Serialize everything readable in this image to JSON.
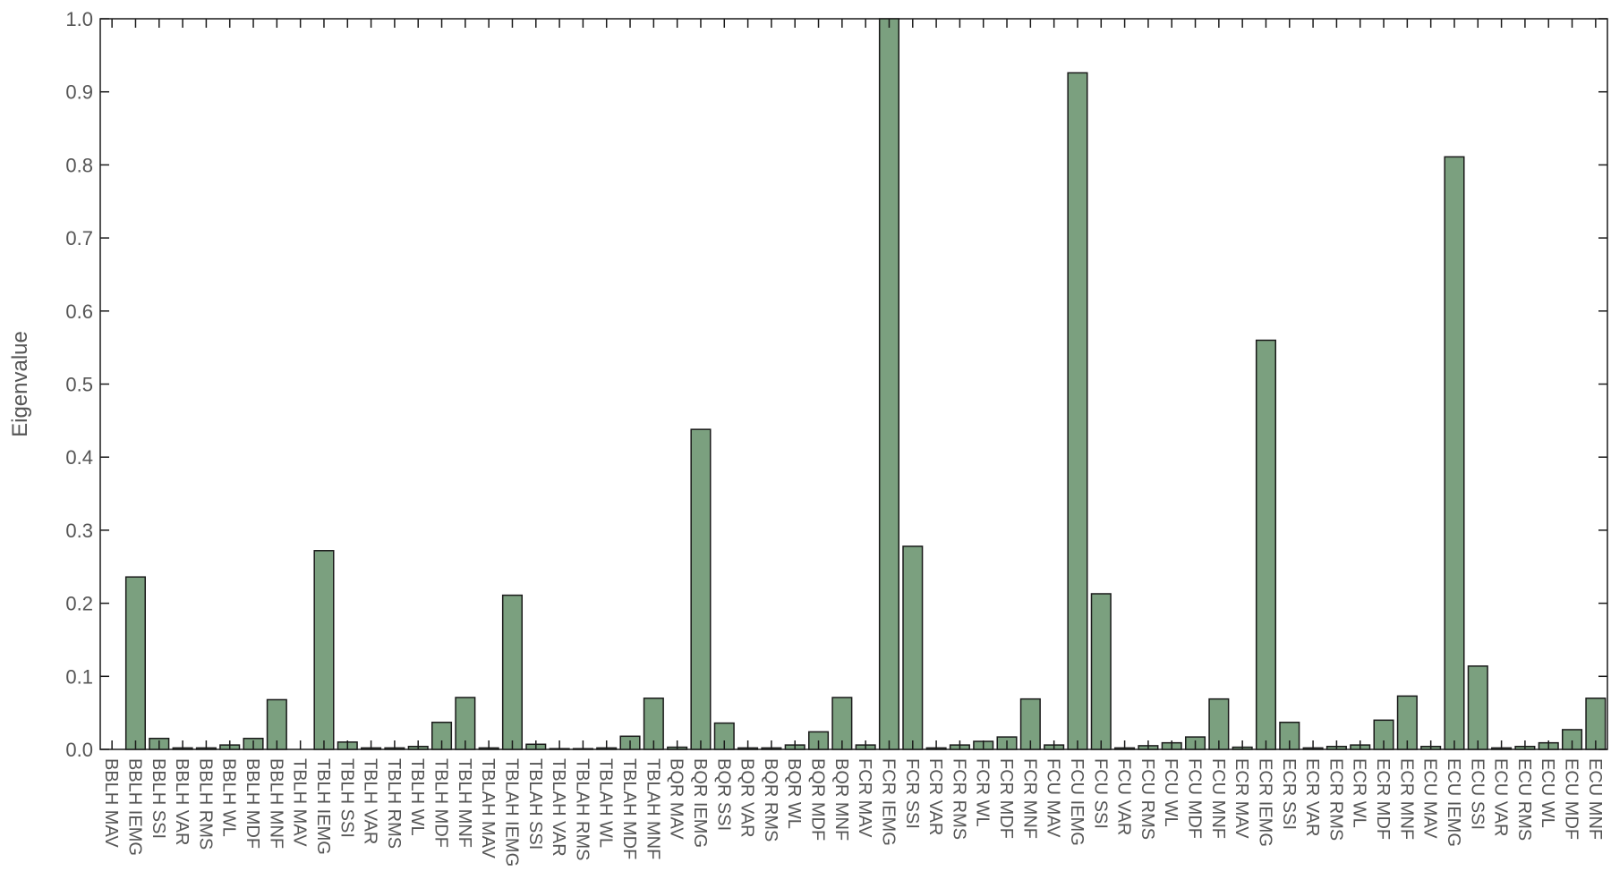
{
  "chart_data": {
    "type": "bar",
    "title": "",
    "xlabel": "",
    "ylabel": "Eigenvalue",
    "ylim": [
      0,
      1.0
    ],
    "yticks": [
      "0.0",
      "0.1",
      "0.2",
      "0.3",
      "0.4",
      "0.5",
      "0.6",
      "0.7",
      "0.8",
      "0.9",
      "1.0"
    ],
    "grid": false,
    "bar_color": "#7ba07f",
    "bar_edge_color": "#1a1a1a",
    "categories": [
      "BBLH MAV",
      "BBLH IEMG",
      "BBLH SSI",
      "BBLH VAR",
      "BBLH RMS",
      "BBLH WL",
      "BBLH MDF",
      "BBLH MNF",
      "TBLH MAV",
      "TBLH IEMG",
      "TBLH SSI",
      "TBLH VAR",
      "TBLH RMS",
      "TBLH WL",
      "TBLH MDF",
      "TBLH MNF",
      "TBLAH MAV",
      "TBLAH IEMG",
      "TBLAH SSI",
      "TBLAH VAR",
      "TBLAH RMS",
      "TBLAH WL",
      "TBLAH MDF",
      "TBLAH MNF",
      "BQR MAV",
      "BQR IEMG",
      "BQR SSI",
      "BQR VAR",
      "BQR RMS",
      "BQR WL",
      "BQR MDF",
      "BQR MNF",
      "FCR MAV",
      "FCR IEMG",
      "FCR SSI",
      "FCR VAR",
      "FCR RMS",
      "FCR WL",
      "FCR MDF",
      "FCR MNF",
      "FCU MAV",
      "FCU IEMG",
      "FCU SSI",
      "FCU VAR",
      "FCU RMS",
      "FCU WL",
      "FCU MDF",
      "FCU MNF",
      "ECR MAV",
      "ECR IEMG",
      "ECR SSI",
      "ECR VAR",
      "ECR RMS",
      "ECR WL",
      "ECR MDF",
      "ECR MNF",
      "ECU MAV",
      "ECU IEMG",
      "ECU SSI",
      "ECU VAR",
      "ECU RMS",
      "ECU WL",
      "ECU MDF",
      "ECU MNF"
    ],
    "values": [
      0.0,
      0.236,
      0.015,
      0.002,
      0.002,
      0.006,
      0.015,
      0.068,
      0.0,
      0.272,
      0.01,
      0.002,
      0.002,
      0.004,
      0.037,
      0.071,
      0.002,
      0.211,
      0.007,
      0.001,
      0.001,
      0.002,
      0.018,
      0.07,
      0.003,
      0.438,
      0.036,
      0.002,
      0.002,
      0.006,
      0.024,
      0.071,
      0.006,
      1.0,
      0.278,
      0.002,
      0.006,
      0.011,
      0.017,
      0.069,
      0.006,
      0.926,
      0.213,
      0.002,
      0.005,
      0.009,
      0.017,
      0.069,
      0.003,
      0.56,
      0.037,
      0.002,
      0.004,
      0.006,
      0.04,
      0.073,
      0.004,
      0.811,
      0.114,
      0.002,
      0.004,
      0.009,
      0.027,
      0.07
    ]
  }
}
